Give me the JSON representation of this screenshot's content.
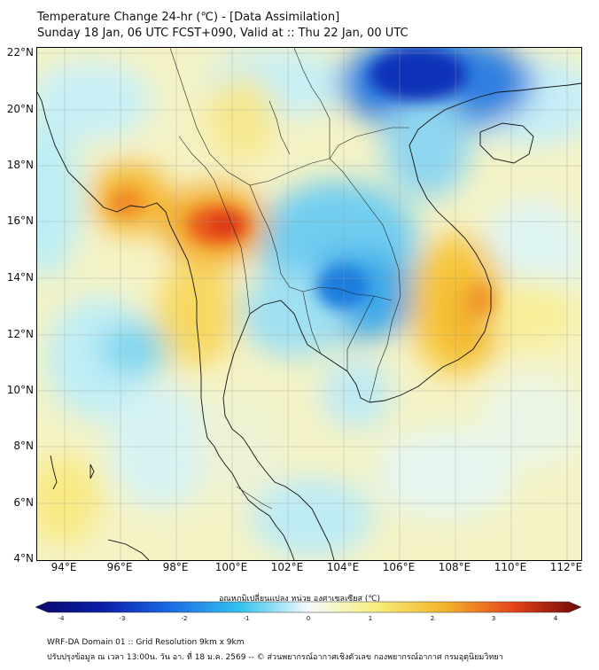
{
  "header": {
    "title": "Temperature Change 24-hr (℃) - [Data Assimilation]",
    "subtitle": "Sunday 18 Jan, 06 UTC FCST+090, Valid at :: Thu 22 Jan, 00 UTC"
  },
  "map": {
    "lat_labels": [
      "22°N",
      "20°N",
      "18°N",
      "16°N",
      "14°N",
      "12°N",
      "10°N",
      "8°N",
      "6°N",
      "4°N"
    ],
    "lon_labels": [
      "94°E",
      "96°E",
      "98°E",
      "100°E",
      "102°E",
      "104°E",
      "106°E",
      "108°E",
      "110°E",
      "112°E"
    ],
    "lat_values": [
      22,
      20,
      18,
      16,
      14,
      12,
      10,
      8,
      6,
      4
    ],
    "lon_values": [
      94,
      96,
      98,
      100,
      102,
      104,
      106,
      108,
      110,
      112
    ],
    "lon_range": [
      93,
      112.5
    ],
    "lat_range": [
      4,
      22.2
    ]
  },
  "colorbar": {
    "label": "อุณหภูมิเปลี่ยนแปลง หน่วย องศาเซลเซียส (℃)",
    "ticks": [
      "-4",
      "-3",
      "-2",
      "-1",
      "0",
      "1",
      "2",
      "3",
      "4"
    ],
    "min": -4,
    "max": 4,
    "colors": {
      "minus4": "#08086b",
      "minus3": "#0a1ea8",
      "minus2": "#1b6ee6",
      "minus1": "#34c2ee",
      "zero": "#f4fbfc",
      "plus1": "#f7ee7a",
      "plus2": "#f2b42a",
      "plus3": "#e6441a",
      "plus4": "#6e0606"
    }
  },
  "footer": {
    "line1": "WRF-DA Domain 01 :: Grid Resolution 9km x 9km",
    "line2": "ปรับปรุงข้อมูล ณ เวลา 13:00น. วัน อา. ที่ 18 ม.ค. 2569 -- © ส่วนพยากรณ์อากาศเชิงตัวเลข กองพยากรณ์อากาศ กรมอุตุนิยมวิทยา"
  }
}
